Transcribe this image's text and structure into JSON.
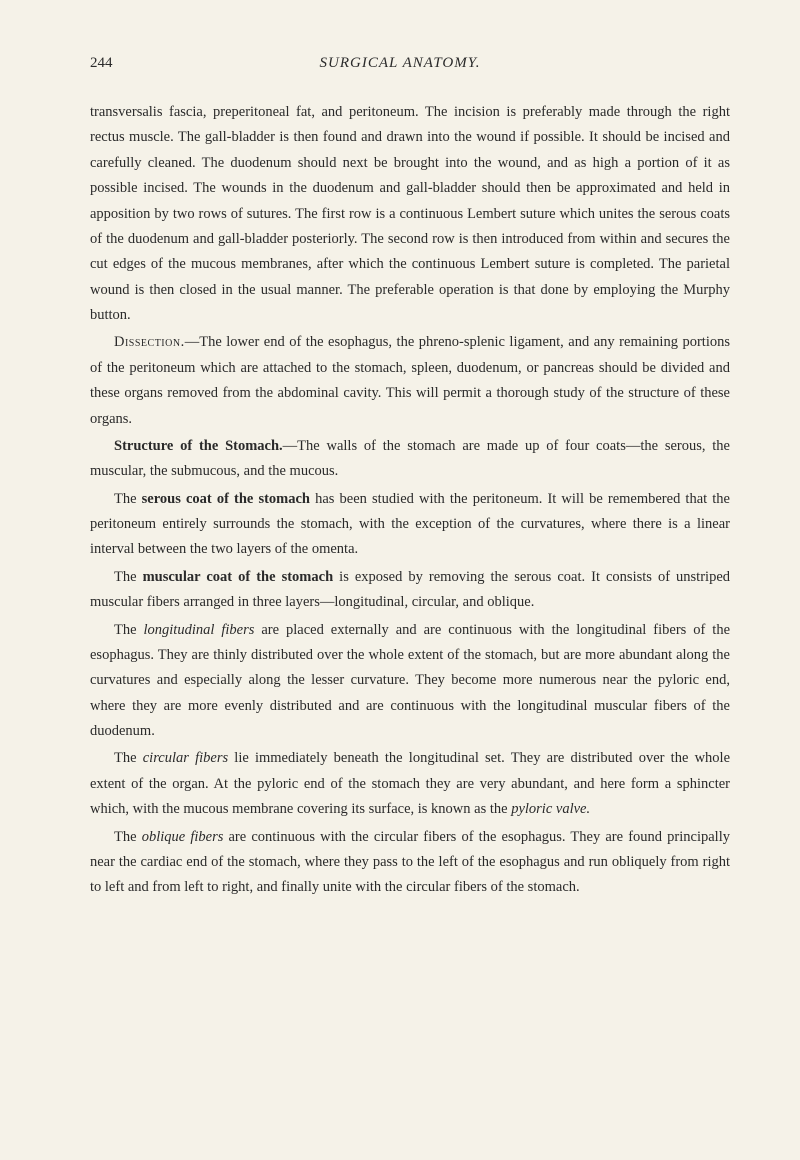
{
  "page_number": "244",
  "running_header": "SURGICAL ANATOMY.",
  "paragraphs": [
    {
      "text": "transversalis fascia, preperitoneal fat, and peritoneum. The incision is preferably made through the right rectus muscle. The gall-bladder is then found and drawn into the wound if possible. It should be incised and carefully cleaned. The duodenum should next be brought into the wound, and as high a portion of it as possible incised. The wounds in the duodenum and gall-bladder should then be approximated and held in apposition by two rows of sutures. The first row is a continuous Lembert suture which unites the serous coats of the duodenum and gall-bladder posteriorly. The second row is then introduced from within and secures the cut edges of the mucous membranes, after which the continuous Lembert suture is completed. The parietal wound is then closed in the usual manner. The preferable operation is that done by employing the Murphy button.",
      "indent": false
    },
    {
      "prefix_sc": "Dissection.",
      "text": "—The lower end of the esophagus, the phreno-splenic ligament, and any remaining portions of the peritoneum which are attached to the stomach, spleen, duodenum, or pancreas should be divided and these organs removed from the abdominal cavity. This will permit a thorough study of the structure of these organs.",
      "indent": true
    },
    {
      "prefix_bold": "Structure of the Stomach.",
      "text": "—The walls of the stomach are made up of four coats—the serous, the muscular, the submucous, and the mucous.",
      "indent": true
    },
    {
      "prefix": "The ",
      "prefix_bold": "serous coat of the stomach",
      "text": " has been studied with the peritoneum. It will be remembered that the peritoneum entirely surrounds the stomach, with the exception of the curvatures, where there is a linear interval between the two layers of the omenta.",
      "indent": true
    },
    {
      "prefix": "The ",
      "prefix_bold": "muscular coat of the stomach",
      "text": " is exposed by removing the serous coat. It consists of unstriped muscular fibers arranged in three layers—longitudinal, circular, and oblique.",
      "indent": true
    },
    {
      "prefix": "The ",
      "prefix_italic": "longitudinal fibers",
      "text": " are placed externally and are continuous with the longitudinal fibers of the esophagus. They are thinly distributed over the whole extent of the stomach, but are more abundant along the curvatures and especially along the lesser curvature. They become more numerous near the pyloric end, where they are more evenly distributed and are continuous with the longitudinal muscular fibers of the duodenum.",
      "indent": true
    },
    {
      "prefix": "The ",
      "prefix_italic": "circular fibers",
      "text": " lie immediately beneath the longitudinal set. They are distributed over the whole extent of the organ. At the pyloric end of the stomach they are very abundant, and here form a sphincter which, with the mucous membrane covering its surface, is known as the ",
      "suffix_italic": "pyloric valve.",
      "indent": true
    },
    {
      "prefix": "The ",
      "prefix_italic": "oblique fibers",
      "text": " are continuous with the circular fibers of the esophagus. They are found principally near the cardiac end of the stomach, where they pass to the left of the esophagus and run obliquely from right to left and from left to right, and finally unite with the circular fibers of the stomach.",
      "indent": true
    }
  ]
}
